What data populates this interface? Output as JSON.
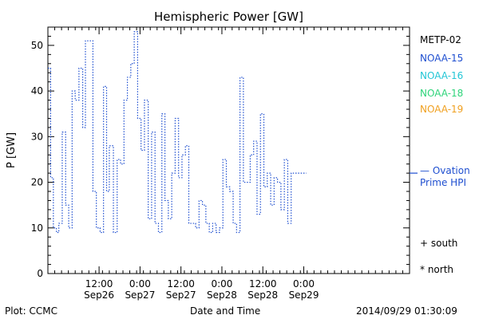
{
  "chart_data": {
    "type": "line",
    "title": "Hemispheric Power [GW]",
    "ylabel": "P [GW]",
    "xlabel": "Date and Time",
    "ylim": [
      0,
      54
    ],
    "yticks": [
      0,
      10,
      20,
      30,
      40,
      50
    ],
    "xlim_hours": [
      0,
      106
    ],
    "xticks": [
      {
        "hour": 15,
        "line1": "12:00",
        "line2": "Sep26"
      },
      {
        "hour": 27,
        "line1": "0:00",
        "line2": "Sep27"
      },
      {
        "hour": 39,
        "line1": "12:00",
        "line2": "Sep27"
      },
      {
        "hour": 51,
        "line1": "0:00",
        "line2": "Sep28"
      },
      {
        "hour": 63,
        "line1": "12:00",
        "line2": "Sep28"
      },
      {
        "hour": 75,
        "line1": "0:00",
        "line2": "Sep29"
      }
    ],
    "legend": [
      {
        "name": "METP-02",
        "color": "#000000"
      },
      {
        "name": "NOAA-15",
        "color": "#1f4fd0"
      },
      {
        "name": "NOAA-16",
        "color": "#22c6d6"
      },
      {
        "name": "NOAA-18",
        "color": "#2ed47a"
      },
      {
        "name": "NOAA-19",
        "color": "#f0a020"
      }
    ],
    "ovation": {
      "label_line1": "— Ovation",
      "label_line2": "Prime HPI",
      "value": 22,
      "color": "#1f4fd0"
    },
    "markers": [
      {
        "label": "+ south"
      },
      {
        "label": "* north"
      }
    ],
    "series": [
      {
        "color": "#1f4fd0",
        "step": true,
        "x": [
          0,
          0.8,
          1.6,
          2.5,
          3.2,
          4.2,
          5.2,
          6.1,
          7.1,
          8.0,
          9.1,
          10.2,
          11.0,
          12.0,
          13.2,
          14.2,
          15.3,
          16.3,
          17.2,
          18.0,
          19.2,
          20.3,
          21.3,
          22.3,
          23.3,
          24.3,
          25.3,
          26.3,
          27.3,
          28.3,
          29.4,
          30.4,
          31.4,
          32.4,
          33.4,
          34.3,
          35.3,
          36.3,
          37.3,
          38.3,
          39.3,
          40.3,
          41.3,
          42.3,
          43.3,
          44.3,
          45.3,
          46.3,
          47.3,
          48.3,
          49.3,
          50.3,
          51.3,
          52.3,
          53.3,
          54.3,
          55.3,
          56.3,
          57.3,
          58.3,
          59.3,
          60.3,
          61.3,
          62.3,
          63.3,
          64.3,
          65.3,
          66.3,
          67.3,
          68.3,
          69.3,
          70.3,
          71.3,
          72.3,
          73.3,
          74.3,
          75.3
        ],
        "y": [
          45,
          21,
          10,
          9,
          11,
          31,
          15,
          10,
          40,
          38,
          45,
          32,
          51,
          51,
          18,
          10,
          9,
          41,
          18,
          28,
          9,
          25,
          24,
          38,
          43,
          46,
          53,
          34,
          27,
          38,
          12,
          31,
          11,
          9,
          35,
          16,
          12,
          22,
          34,
          21,
          26,
          28,
          11,
          11,
          10,
          16,
          15,
          11,
          9,
          11,
          9,
          10,
          25,
          19,
          18,
          11,
          9,
          43,
          20,
          20,
          26,
          29,
          13,
          35,
          19,
          22,
          15,
          21,
          20,
          14,
          25,
          11,
          22,
          22,
          22,
          22,
          22
        ]
      }
    ]
  },
  "footer": {
    "left": "Plot: CCMC",
    "center": "Date and Time",
    "right": "2014/09/29 01:30:09"
  }
}
